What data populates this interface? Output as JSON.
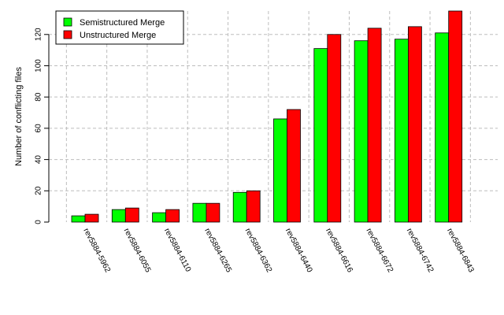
{
  "chart_data": {
    "type": "bar",
    "ylabel": "Number of conflicting files",
    "xlabel": "",
    "title": "",
    "ylim": [
      0,
      135
    ],
    "yticks": [
      0,
      20,
      40,
      60,
      80,
      100,
      120
    ],
    "grid": true,
    "legend_position": "top-left",
    "categories": [
      "rev5884-5962",
      "rev5884-6055",
      "rev5884-6110",
      "rev5884-6265",
      "rev5884-6362",
      "rev5884-6440",
      "rev5884-6616",
      "rev5884-6672",
      "rev5884-6742",
      "rev5884-6843"
    ],
    "series": [
      {
        "name": "Semistructured Merge",
        "color": "#00ff00",
        "values": [
          4,
          8,
          6,
          12,
          19,
          66,
          111,
          116,
          117,
          121
        ]
      },
      {
        "name": "Unstructured Merge",
        "color": "#ff0000",
        "values": [
          5,
          9,
          8,
          12,
          20,
          72,
          120,
          124,
          125,
          135
        ]
      }
    ]
  }
}
